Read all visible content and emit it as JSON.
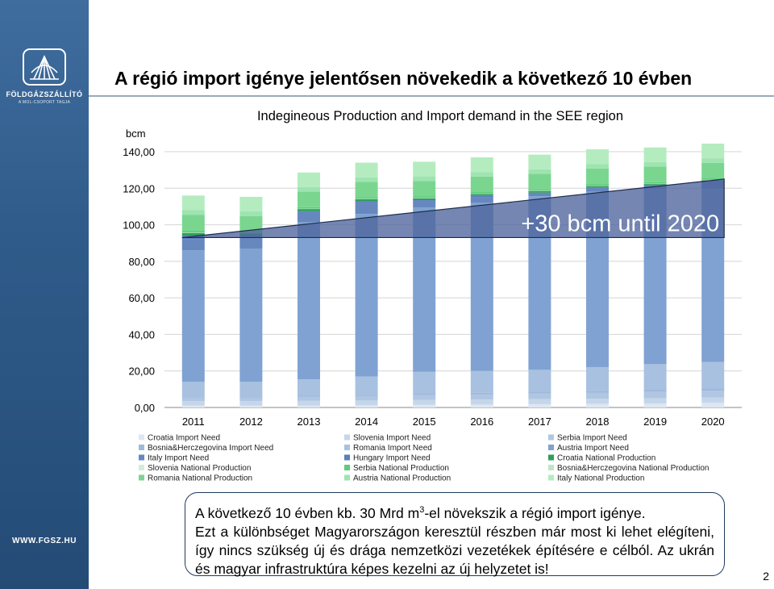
{
  "header": {
    "title": "A régió import igénye jelentősen növekedik a következő 10 évben"
  },
  "brand": {
    "name": "FÖLDGÁZSZÁLLÍTÓ",
    "subtitle": "A MOL-CSOPORT TAGJA",
    "website": "WWW.FGSZ.HU",
    "logo_icon": "shell-logo-icon"
  },
  "note": {
    "line1_pre": "A következő 10 évben kb. 30 Mrd m",
    "line1_sup": "3",
    "line1_post": "-el növekszik a régió import igénye.",
    "rest": "Ezt a különbséget Magyarországon keresztül részben már most ki lehet elégíteni, így nincs szükség új és drága nemzetközi vezetékek építésére e célból. Az ukrán és magyar infrastruktúra képes kezelni az új helyzetet is!"
  },
  "page_number": "2",
  "chart_data": {
    "type": "bar",
    "stacked": true,
    "title": "Indegineous Production and Import demand in the SEE region",
    "ylabel": "bcm",
    "ylim": [
      0,
      140
    ],
    "yticks": [
      "0,00",
      "20,00",
      "40,00",
      "60,00",
      "80,00",
      "100,00",
      "120,00",
      "140,00"
    ],
    "grid": true,
    "legend_position": "bottom",
    "categories": [
      "2011",
      "2012",
      "2013",
      "2014",
      "2015",
      "2016",
      "2017",
      "2018",
      "2019",
      "2020"
    ],
    "series": [
      {
        "name": "Croatia Import Need",
        "color": "#dde7f3",
        "values": [
          1,
          1,
          1,
          1.2,
          1.4,
          1.6,
          1.8,
          2,
          2.2,
          2.5
        ]
      },
      {
        "name": "Slovenia Import Need",
        "color": "#c6d6ea",
        "values": [
          2.5,
          2.5,
          2.6,
          2.6,
          2.7,
          2.7,
          2.8,
          2.8,
          2.9,
          3
        ]
      },
      {
        "name": "Serbia Import Need",
        "color": "#b0c6e2",
        "values": [
          2,
          2,
          2.2,
          2.4,
          2.6,
          2.8,
          3,
          3.2,
          3.4,
          3.6
        ]
      },
      {
        "name": "Bosnia&Herczegovina Import Need",
        "color": "#9fb9dc",
        "values": [
          0.5,
          0.5,
          0.6,
          0.7,
          0.8,
          0.9,
          1,
          1.1,
          1.2,
          1.3
        ]
      },
      {
        "name": "Romania Import Need",
        "color": "#a8c1e1",
        "values": [
          8,
          8,
          9,
          10,
          12,
          12,
          12,
          13,
          14,
          14.5
        ]
      },
      {
        "name": "Austria Import Need",
        "color": "#7fa2d2",
        "values": [
          72,
          73,
          86,
          89,
          90,
          92,
          95,
          96,
          96,
          95
        ]
      },
      {
        "name": "Italy Import Need",
        "color": "#6688bf",
        "values": [
          6,
          6,
          6,
          6,
          4,
          3,
          2,
          2.5,
          2,
          4
        ]
      },
      {
        "name": "Hungary Import Need",
        "color": "#5b7fbd",
        "values": [
          2,
          1,
          0,
          1,
          0,
          1,
          0,
          0,
          0,
          0
        ]
      },
      {
        "name": "Croatia National Production",
        "color": "#2f9e5c",
        "values": [
          1.5,
          1.3,
          1.2,
          1.1,
          1,
          0.9,
          0.8,
          0.7,
          0.6,
          0.5
        ]
      },
      {
        "name": "Slovenia National Production",
        "color": "#d4ecd9",
        "values": [
          0.2,
          0.2,
          0.2,
          0.2,
          0.2,
          0.2,
          0.2,
          0.2,
          0.2,
          0.2
        ]
      },
      {
        "name": "Serbia National Production",
        "color": "#5ccc7a",
        "values": [
          0.8,
          0.8,
          0.8,
          0.8,
          0.8,
          0.8,
          0.8,
          0.8,
          0.8,
          0.8
        ]
      },
      {
        "name": "Bosnia&Herczegovina National Production",
        "color": "#bfe6c7",
        "values": [
          0,
          0,
          0,
          0,
          0,
          0,
          0,
          0,
          0,
          0
        ]
      },
      {
        "name": "Romania National Production",
        "color": "#7ad68f",
        "values": [
          9,
          8.5,
          8.5,
          8.5,
          8.5,
          8.5,
          8.5,
          8.5,
          8.5,
          8.5
        ]
      },
      {
        "name": "Austria National Production",
        "color": "#9ee4b0",
        "values": [
          2.5,
          2.5,
          2.5,
          2.5,
          2.5,
          2.5,
          2.5,
          2.5,
          2.5,
          2.5
        ]
      },
      {
        "name": "Italy National Production",
        "color": "#b4ecc0",
        "values": [
          8,
          8,
          8,
          8,
          8,
          8,
          8,
          8,
          8,
          8
        ]
      }
    ],
    "annotation": {
      "text": "+30 bcm until 2020",
      "from": [
        "2011",
        93
      ],
      "to": [
        "2020",
        125
      ]
    }
  }
}
